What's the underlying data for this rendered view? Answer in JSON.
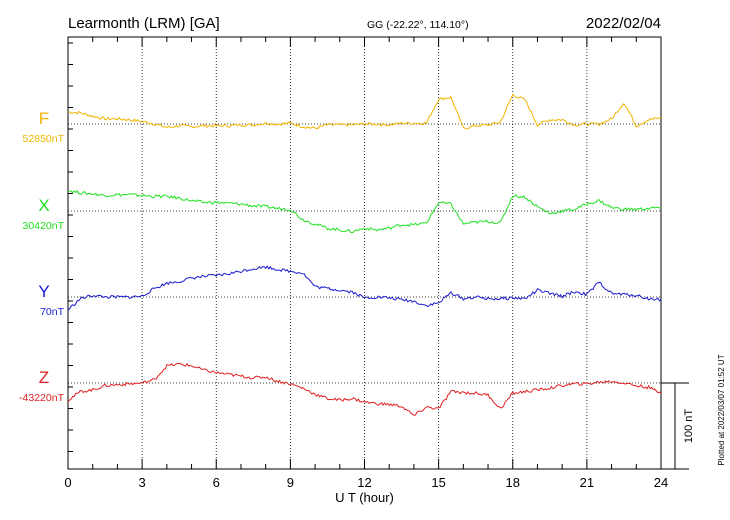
{
  "header": {
    "station": "Learmonth (LRM)  [GA]",
    "coords": "GG (-22.22°, 114.10°)",
    "date": "2022/02/04"
  },
  "footer": {
    "plotted": "Plotted at 2022/03/07 01:52 UT"
  },
  "chart_data": {
    "type": "line",
    "title": "Learmonth (LRM)  [GA]",
    "xlabel": "U T (hour)",
    "xlim": [
      0,
      24
    ],
    "x_ticks": [
      "0",
      "3",
      "6",
      "9",
      "12",
      "15",
      "18",
      "21",
      "24"
    ],
    "grid": true,
    "scale_bar": {
      "label": "100 nT",
      "value_nT": 100
    },
    "x": [
      0,
      0.5,
      1,
      1.5,
      2,
      2.5,
      3,
      3.5,
      4,
      4.5,
      5,
      5.5,
      6,
      6.5,
      7,
      7.5,
      8,
      8.5,
      9,
      9.5,
      10,
      10.5,
      11,
      11.5,
      12,
      12.5,
      13,
      13.5,
      14,
      14.5,
      15,
      15.5,
      16,
      16.5,
      17,
      17.5,
      18,
      18.5,
      19,
      19.5,
      20,
      20.5,
      21,
      21.5,
      22,
      22.5,
      23,
      23.5,
      24
    ],
    "series": [
      {
        "name": "F",
        "baseline_label": "52850nT",
        "baseline_nT": 52850,
        "color": "#f0b400",
        "values": [
          14,
          13,
          9,
          6,
          6,
          5,
          3,
          0,
          -4,
          -2,
          -3,
          -2,
          -2,
          -2,
          -1,
          -1,
          1,
          0,
          1,
          -3,
          -5,
          -1,
          -1,
          -1,
          0,
          0,
          -1,
          1,
          1,
          1,
          29,
          31,
          -5,
          -2,
          -1,
          2,
          34,
          28,
          -1,
          5,
          5,
          -1,
          0,
          0,
          6,
          25,
          -2,
          5,
          7
        ]
      },
      {
        "name": "X",
        "baseline_label": "30420nT",
        "baseline_nT": 30420,
        "color": "#22e022",
        "values": [
          24,
          21,
          20,
          18,
          19,
          19,
          18,
          17,
          17,
          15,
          12,
          10,
          10,
          9,
          8,
          6,
          5,
          3,
          2,
          -10,
          -15,
          -20,
          -22,
          -24,
          -20,
          -22,
          -20,
          -16,
          -16,
          -14,
          10,
          8,
          -15,
          -13,
          -12,
          -14,
          18,
          16,
          5,
          -3,
          0,
          2,
          8,
          12,
          4,
          2,
          2,
          3,
          4
        ]
      },
      {
        "name": "Y",
        "baseline_label": "70nT",
        "baseline_nT": 70,
        "color": "#1a1ad0",
        "values": [
          -15,
          -2,
          2,
          0,
          0,
          0,
          1,
          10,
          16,
          18,
          22,
          24,
          25,
          27,
          30,
          33,
          35,
          32,
          30,
          28,
          12,
          10,
          8,
          6,
          -1,
          0,
          -1,
          -3,
          -5,
          -10,
          -7,
          5,
          -2,
          0,
          -2,
          -2,
          -1,
          -2,
          8,
          4,
          1,
          6,
          3,
          17,
          4,
          3,
          2,
          -2,
          -3
        ]
      },
      {
        "name": "Z",
        "baseline_label": "-43220nT",
        "baseline_nT": -43220,
        "color": "#e02020",
        "values": [
          -20,
          -10,
          -8,
          -3,
          -2,
          -1,
          0,
          4,
          20,
          22,
          20,
          15,
          12,
          10,
          8,
          6,
          7,
          2,
          -1,
          -6,
          -13,
          -18,
          -20,
          -18,
          -22,
          -24,
          -25,
          -27,
          -38,
          -28,
          -30,
          -10,
          -11,
          -12,
          -14,
          -30,
          -12,
          -10,
          -8,
          -6,
          -3,
          -1,
          -1,
          1,
          2,
          0,
          -3,
          -5,
          -12
        ]
      }
    ]
  }
}
